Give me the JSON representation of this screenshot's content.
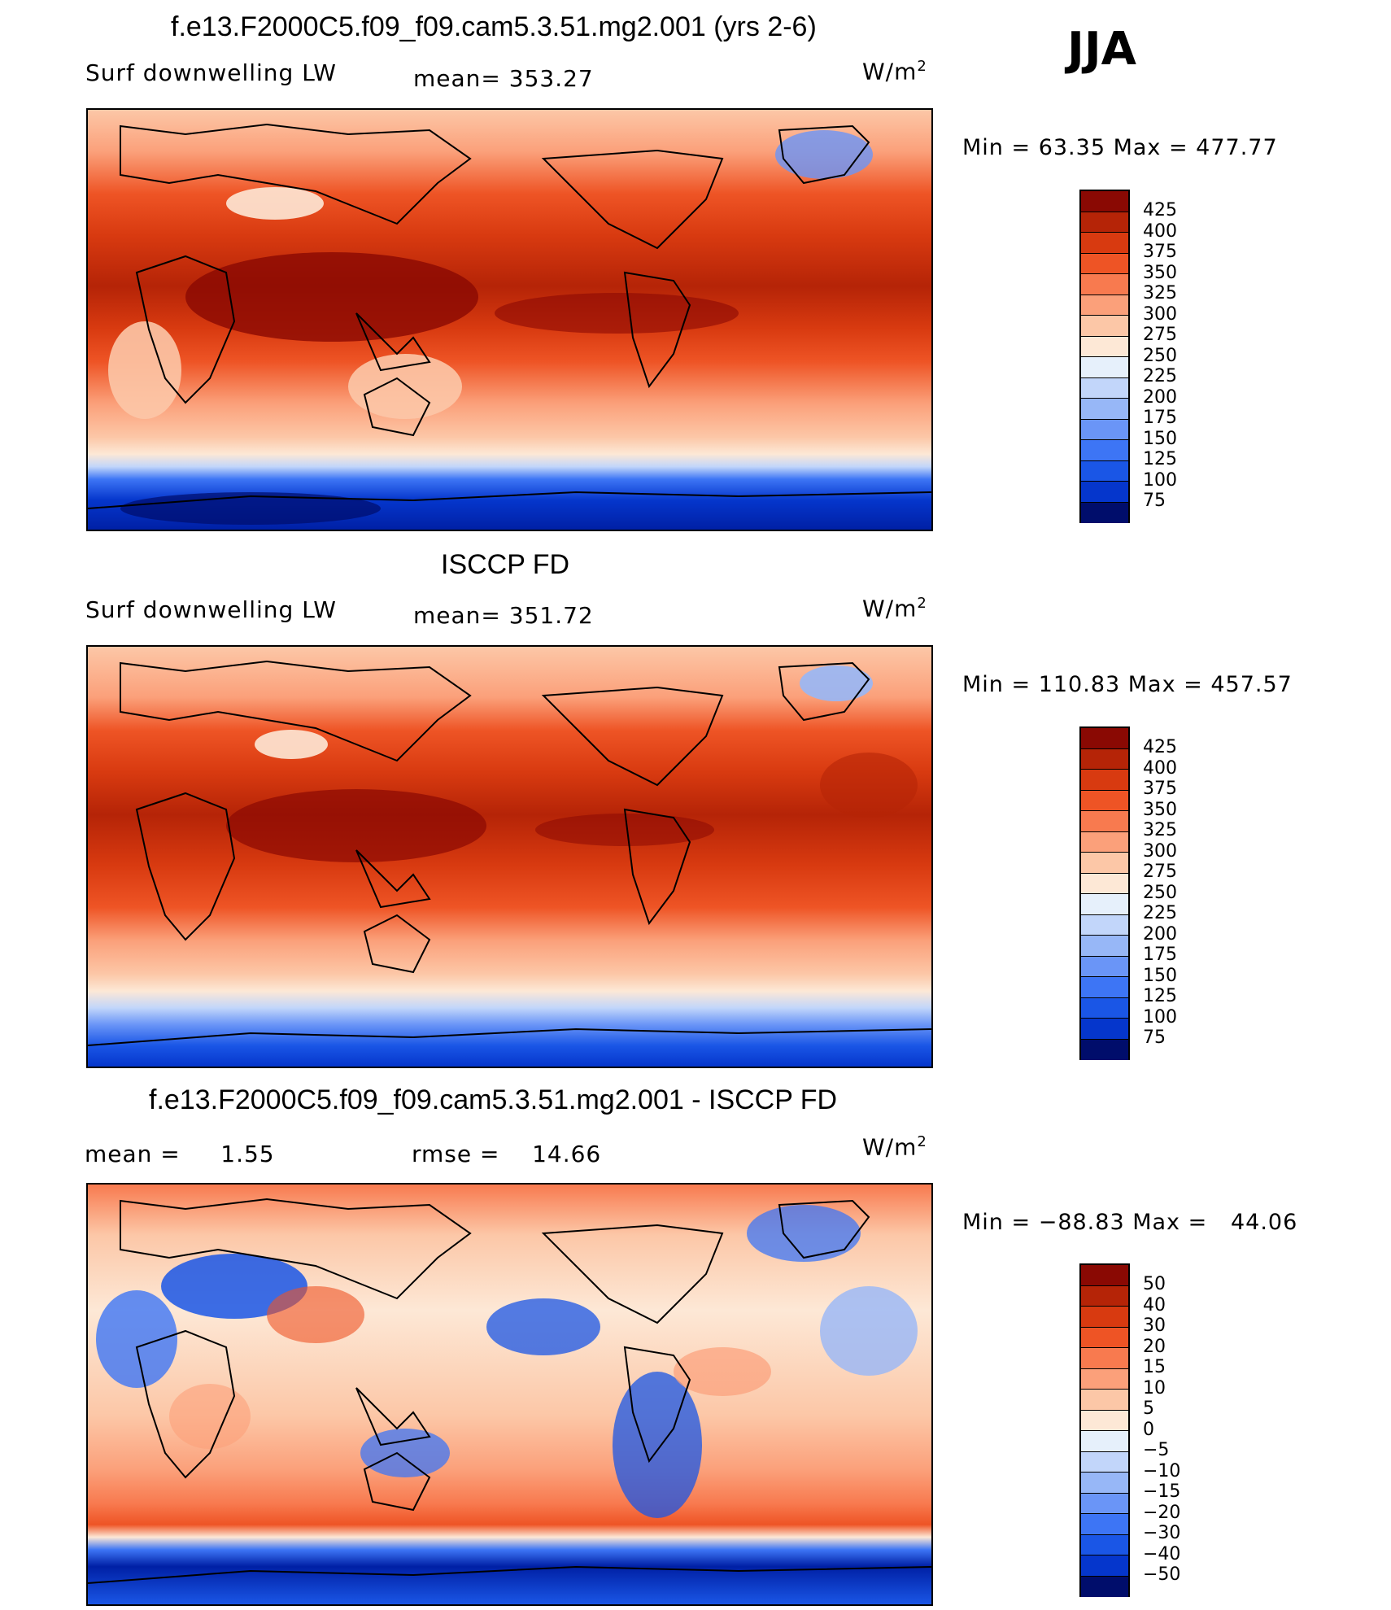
{
  "season": "JJA",
  "colors": {
    "abs_scale": [
      "#000d6b",
      "#0020a5",
      "#0536cc",
      "#1a56e6",
      "#3d75f5",
      "#6a95f7",
      "#97b7f7",
      "#c2d6fa",
      "#e6f0fb",
      "#fde8d6",
      "#fcc7a7",
      "#fba07a",
      "#f87a4f",
      "#ee5425",
      "#d83a10",
      "#b52407",
      "#8a0903"
    ],
    "diff_scale": [
      "#000d6b",
      "#0020a5",
      "#0536cc",
      "#1a56e6",
      "#3d75f5",
      "#6a95f7",
      "#97b7f7",
      "#c2d6fa",
      "#e6f0fb",
      "#fde8d6",
      "#fcc7a7",
      "#fba07a",
      "#f87a4f",
      "#ee5425",
      "#d83a10",
      "#b52407",
      "#8a0903"
    ]
  },
  "panels": [
    {
      "title": "f.e13.F2000C5.f09_f09.cam5.3.51.mg2.001 (yrs 2-6)",
      "left_label": "Surf downwelling LW",
      "mid_label": "mean= 353.27",
      "unit_base": "W/m",
      "unit_sup": "2",
      "minmax": "Min =  63.35 Max = 477.77",
      "colorbar_ticks": [
        "425",
        "400",
        "375",
        "350",
        "325",
        "300",
        "275",
        "250",
        "225",
        "200",
        "175",
        "150",
        "125",
        "100",
        "75"
      ]
    },
    {
      "title": "ISCCP FD",
      "left_label": "Surf downwelling LW",
      "mid_label": "mean= 351.72",
      "unit_base": "W/m",
      "unit_sup": "2",
      "minmax": "Min = 110.83 Max = 457.57",
      "colorbar_ticks": [
        "425",
        "400",
        "375",
        "350",
        "325",
        "300",
        "275",
        "250",
        "225",
        "200",
        "175",
        "150",
        "125",
        "100",
        "75"
      ]
    },
    {
      "title": "f.e13.F2000C5.f09_f09.cam5.3.51.mg2.001 - ISCCP FD",
      "left_label": "mean =     1.55",
      "mid_label": "rmse =    14.66",
      "unit_base": "W/m",
      "unit_sup": "2",
      "minmax": "Min = −88.83 Max =   44.06",
      "colorbar_ticks": [
        "50",
        "40",
        "30",
        "20",
        "15",
        "10",
        "5",
        "0",
        "−5",
        "−10",
        "−15",
        "−20",
        "−30",
        "−40",
        "−50"
      ]
    }
  ]
}
